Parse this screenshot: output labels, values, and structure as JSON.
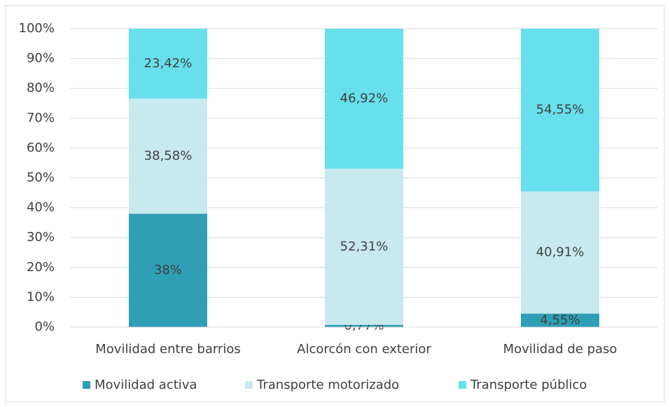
{
  "chart_data": {
    "type": "stacked_bar",
    "categories": [
      "Movilidad entre barrios",
      "Alcorcón con exterior",
      "Movilidad de paso"
    ],
    "series": [
      {
        "name": "Movilidad activa",
        "color": "#2e9fb5",
        "values": [
          38,
          0.77,
          4.55
        ],
        "value_labels": [
          "38%",
          "0,77%",
          "4,55%"
        ]
      },
      {
        "name": "Transporte motorizado",
        "color": "#c8e9ee",
        "values": [
          38.58,
          52.31,
          40.91
        ],
        "value_labels": [
          "38,58%",
          "52,31%",
          "40,91%"
        ]
      },
      {
        "name": "Transporte público",
        "color": "#67dfec",
        "values": [
          23.42,
          46.92,
          54.55
        ],
        "value_labels": [
          "23,42%",
          "46,92%",
          "54,55%"
        ]
      }
    ],
    "ylim": [
      0,
      100
    ],
    "yticks": [
      {
        "value": 0,
        "label": "0%"
      },
      {
        "value": 10,
        "label": "10%"
      },
      {
        "value": 20,
        "label": "20%"
      },
      {
        "value": 30,
        "label": "30%"
      },
      {
        "value": 40,
        "label": "40%"
      },
      {
        "value": 50,
        "label": "50%"
      },
      {
        "value": 60,
        "label": "60%"
      },
      {
        "value": 70,
        "label": "70%"
      },
      {
        "value": 80,
        "label": "80%"
      },
      {
        "value": 90,
        "label": "90%"
      },
      {
        "value": 100,
        "label": "100%"
      }
    ],
    "grid": true,
    "legend": "bottom"
  }
}
